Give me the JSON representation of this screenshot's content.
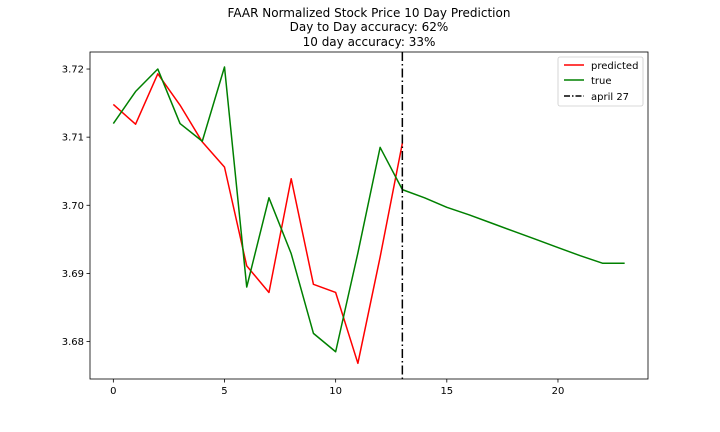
{
  "chart_data": {
    "type": "line",
    "title_lines": [
      "FAAR Normalized Stock Price 10 Day Prediction",
      "Day to Day accuracy: 62%",
      "10 day accuracy: 33%"
    ],
    "xlabel": "",
    "ylabel": "",
    "xlim": [
      -1.05,
      24.05
    ],
    "ylim": [
      3.6745,
      3.7225
    ],
    "xticks": [
      0,
      5,
      10,
      15,
      20
    ],
    "yticks": [
      3.68,
      3.69,
      3.7,
      3.71,
      3.72
    ],
    "ytick_labels": [
      "3.68",
      "3.69",
      "3.70",
      "3.71",
      "3.72"
    ],
    "grid": false,
    "legend_position": "top-right",
    "series": [
      {
        "name": "predicted",
        "color": "#ff0000",
        "x": [
          0,
          1,
          2,
          3,
          4,
          5,
          6,
          7,
          8,
          9,
          10,
          11,
          12,
          13
        ],
        "y": [
          3.7148,
          3.7119,
          3.7193,
          3.7147,
          3.7093,
          3.7056,
          3.6911,
          3.6872,
          3.7039,
          3.6884,
          3.6872,
          3.6768,
          3.6924,
          3.7091
        ]
      },
      {
        "name": "true",
        "color": "#008000",
        "x": [
          0,
          1,
          2,
          3,
          4,
          5,
          6,
          7,
          8,
          9,
          10,
          11,
          12,
          13,
          14,
          15,
          16,
          17,
          18,
          19,
          20,
          21,
          22,
          23
        ],
        "y": [
          3.712,
          3.7167,
          3.72,
          3.712,
          3.7094,
          3.7203,
          3.688,
          3.7011,
          3.6929,
          3.6812,
          3.6785,
          3.693,
          3.7085,
          3.7023,
          3.7011,
          3.6997,
          3.6986,
          3.6974,
          3.6962,
          3.695,
          3.6938,
          3.6926,
          3.6915,
          3.6915
        ]
      }
    ],
    "vline": {
      "name": "april 27",
      "x": 13,
      "color": "#000000",
      "style": "dash-dot"
    }
  }
}
